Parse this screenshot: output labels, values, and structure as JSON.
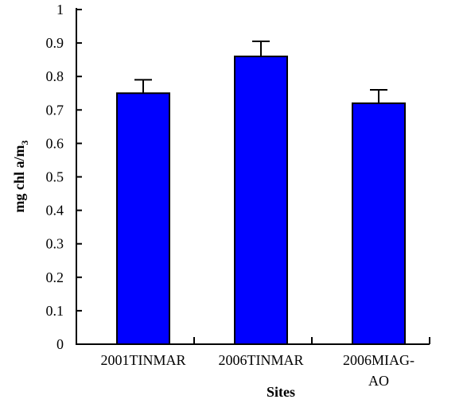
{
  "chart_data": {
    "type": "bar",
    "categories": [
      "2001TINMAR",
      "2006TINMAR",
      "2006MIAG-AO"
    ],
    "values": [
      0.75,
      0.86,
      0.72
    ],
    "errors": [
      0.04,
      0.045,
      0.04
    ],
    "xlabel": "Sites",
    "ylabel": {
      "main": "mg chl a/m",
      "subscript": "3"
    },
    "ylim": [
      0,
      1
    ],
    "yticks": [
      {
        "value": 0,
        "label": "0"
      },
      {
        "value": 0.1,
        "label": "0.1"
      },
      {
        "value": 0.2,
        "label": "0.2"
      },
      {
        "value": 0.3,
        "label": "0.3"
      },
      {
        "value": 0.4,
        "label": "0.4"
      },
      {
        "value": 0.5,
        "label": "0.5"
      },
      {
        "value": 0.6,
        "label": "0.6"
      },
      {
        "value": 0.7,
        "label": "0.7"
      },
      {
        "value": 0.8,
        "label": "0.8"
      },
      {
        "value": 0.9,
        "label": "0.9"
      },
      {
        "value": 1,
        "label": "1"
      }
    ],
    "category_labels": [
      [
        "2001TINMAR"
      ],
      [
        "2006TINMAR"
      ],
      [
        "2006MIAG-",
        "AO"
      ]
    ],
    "grid": false,
    "bar_color": "#0000ff"
  }
}
